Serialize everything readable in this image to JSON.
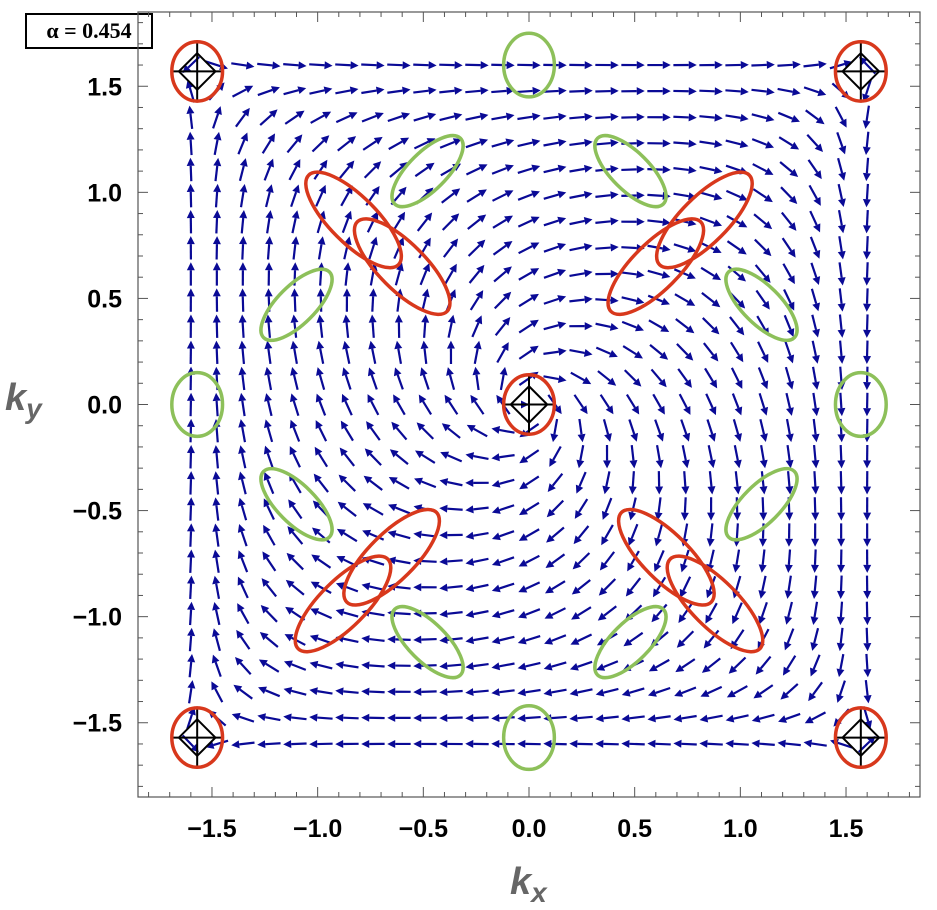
{
  "alpha_label": "α = 0.454",
  "chart_data": {
    "type": "vector_field",
    "xlabel": "k",
    "xlabel_sub": "x",
    "ylabel": "k",
    "ylabel_sub": "y",
    "xlim": [
      -1.85,
      1.85
    ],
    "ylim": [
      -1.85,
      1.85
    ],
    "xticks": [
      {
        "value": -1.5,
        "label": "−1.5"
      },
      {
        "value": -1.0,
        "label": "−1.0"
      },
      {
        "value": -0.5,
        "label": "−0.5"
      },
      {
        "value": 0.0,
        "label": "0.0"
      },
      {
        "value": 0.5,
        "label": "0.5"
      },
      {
        "value": 1.0,
        "label": "1.0"
      },
      {
        "value": 1.5,
        "label": "1.5"
      }
    ],
    "yticks": [
      {
        "value": 1.5,
        "label": "1.5"
      },
      {
        "value": 1.0,
        "label": "1.0"
      },
      {
        "value": 0.5,
        "label": "0.5"
      },
      {
        "value": 0.0,
        "label": "0.0"
      },
      {
        "value": -0.5,
        "label": "−0.5"
      },
      {
        "value": -1.0,
        "label": "−1.0"
      },
      {
        "value": -1.5,
        "label": "−1.5"
      }
    ],
    "arrow_color": "#0a0a96",
    "field_grid": {
      "range": [
        -1.6,
        1.6
      ],
      "n": 27
    },
    "red_color": "#d8381c",
    "green_color": "#8dc05a",
    "red_markers": [
      {
        "x": -1.57,
        "y": 1.57,
        "rx": 0.12,
        "ry": 0.14,
        "angle": 0,
        "cross": true
      },
      {
        "x": 1.57,
        "y": 1.57,
        "rx": 0.12,
        "ry": 0.14,
        "angle": 0,
        "cross": true
      },
      {
        "x": 0.0,
        "y": 0.0,
        "rx": 0.12,
        "ry": 0.14,
        "angle": 0,
        "cross": true
      },
      {
        "x": -1.57,
        "y": -1.57,
        "rx": 0.12,
        "ry": 0.14,
        "angle": 0,
        "cross": true
      },
      {
        "x": 1.57,
        "y": -1.57,
        "rx": 0.12,
        "ry": 0.14,
        "angle": 0,
        "cross": true
      },
      {
        "x": -0.83,
        "y": 0.87,
        "rx": 0.3,
        "ry": 0.11,
        "angle": 45,
        "cross": false
      },
      {
        "x": -0.6,
        "y": 0.65,
        "rx": 0.3,
        "ry": 0.11,
        "angle": 45,
        "cross": false
      },
      {
        "x": 0.83,
        "y": 0.87,
        "rx": 0.3,
        "ry": 0.11,
        "angle": -45,
        "cross": false
      },
      {
        "x": 0.6,
        "y": 0.65,
        "rx": 0.3,
        "ry": 0.11,
        "angle": -45,
        "cross": false
      },
      {
        "x": -0.65,
        "y": -0.72,
        "rx": 0.3,
        "ry": 0.11,
        "angle": -45,
        "cross": false
      },
      {
        "x": -0.88,
        "y": -0.94,
        "rx": 0.3,
        "ry": 0.11,
        "angle": -45,
        "cross": false
      },
      {
        "x": 0.65,
        "y": -0.72,
        "rx": 0.3,
        "ry": 0.11,
        "angle": 45,
        "cross": false
      },
      {
        "x": 0.88,
        "y": -0.94,
        "rx": 0.3,
        "ry": 0.11,
        "angle": 45,
        "cross": false
      }
    ],
    "green_markers": [
      {
        "x": 0.0,
        "y": 1.6,
        "rx": 0.12,
        "ry": 0.15,
        "angle": 0
      },
      {
        "x": 0.0,
        "y": -1.57,
        "rx": 0.12,
        "ry": 0.15,
        "angle": 0
      },
      {
        "x": -1.57,
        "y": 0.0,
        "rx": 0.12,
        "ry": 0.15,
        "angle": 0
      },
      {
        "x": 1.57,
        "y": 0.0,
        "rx": 0.12,
        "ry": 0.15,
        "angle": 0
      },
      {
        "x": -0.48,
        "y": 1.1,
        "rx": 0.22,
        "ry": 0.09,
        "angle": -45
      },
      {
        "x": -1.1,
        "y": 0.47,
        "rx": 0.22,
        "ry": 0.09,
        "angle": -45
      },
      {
        "x": 0.48,
        "y": 1.1,
        "rx": 0.22,
        "ry": 0.09,
        "angle": 45
      },
      {
        "x": 1.1,
        "y": 0.47,
        "rx": 0.22,
        "ry": 0.09,
        "angle": 45
      },
      {
        "x": -1.1,
        "y": -0.47,
        "rx": 0.22,
        "ry": 0.09,
        "angle": 45
      },
      {
        "x": -0.48,
        "y": -1.12,
        "rx": 0.22,
        "ry": 0.09,
        "angle": 45
      },
      {
        "x": 1.1,
        "y": -0.47,
        "rx": 0.22,
        "ry": 0.09,
        "angle": -45
      },
      {
        "x": 0.48,
        "y": -1.12,
        "rx": 0.22,
        "ry": 0.09,
        "angle": -45
      }
    ]
  }
}
